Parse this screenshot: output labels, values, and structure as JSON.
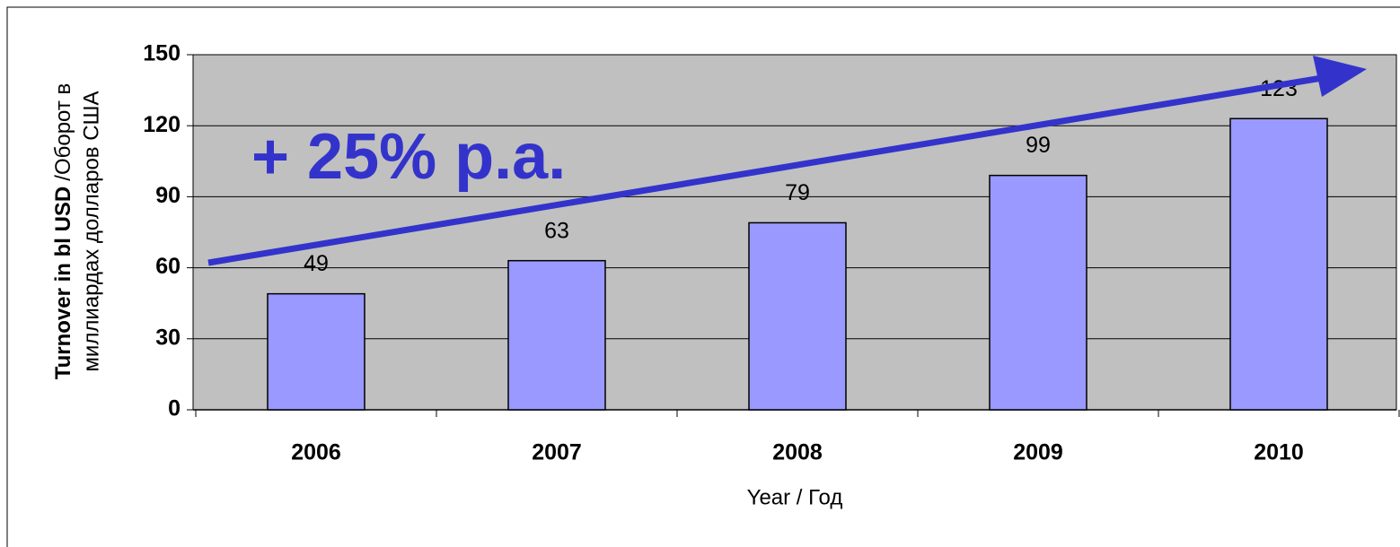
{
  "chart_data": {
    "type": "bar",
    "categories": [
      "2006",
      "2007",
      "2008",
      "2009",
      "2010"
    ],
    "values": [
      49,
      63,
      79,
      99,
      123
    ],
    "color": "#9999ff",
    "plot_background": "#c0c0c0",
    "ylim": [
      0,
      150
    ],
    "yticks": [
      0,
      30,
      60,
      90,
      120,
      150
    ],
    "grid": true,
    "y_label_bold": "Turnover in bl USD",
    "y_label_rest": [
      "/Оборот в",
      "миллиардах долларов США"
    ],
    "x_label": "Year / Год",
    "annotation": "+ 25% p.a.",
    "annotation_color": "#3333cc"
  }
}
